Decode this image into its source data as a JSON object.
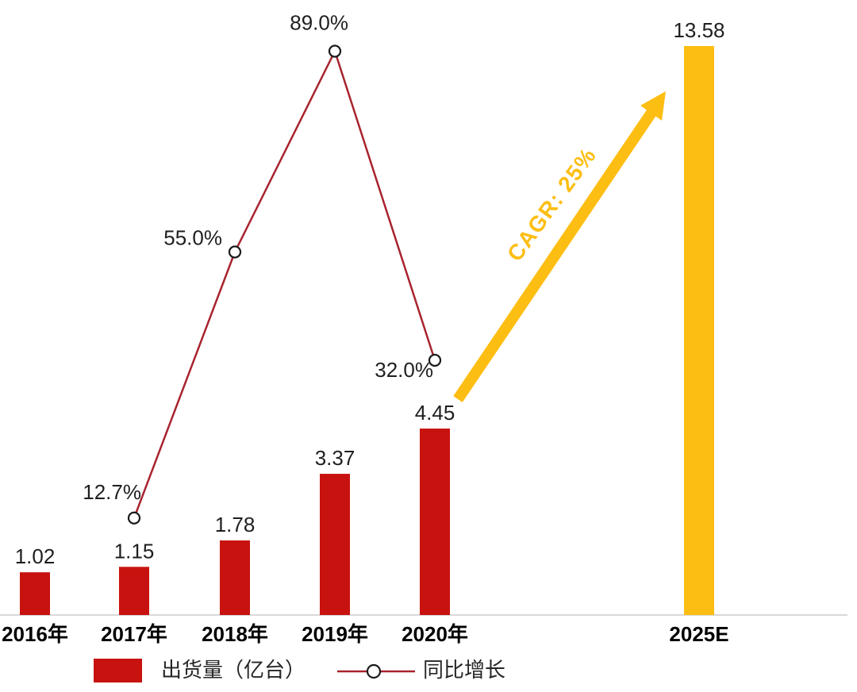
{
  "chart_data": {
    "type": "bar",
    "subtype": "bar-line-combo",
    "title": "",
    "categories": [
      "2016年",
      "2017年",
      "2018年",
      "2019年",
      "2020年",
      "2025E"
    ],
    "series": [
      {
        "name": "出货量（亿台）",
        "type": "bar",
        "values": [
          1.02,
          1.15,
          1.78,
          3.37,
          4.45,
          13.58
        ],
        "labels": [
          "1.02",
          "1.15",
          "1.78",
          "3.37",
          "4.45",
          "13.58"
        ],
        "colors": [
          "#C8120F",
          "#C8120F",
          "#C8120F",
          "#C8120F",
          "#C8120F",
          "#FDBE13"
        ]
      },
      {
        "name": "同比增长",
        "type": "line",
        "values_pct": [
          null,
          12.7,
          55.0,
          89.0,
          32.0,
          null
        ],
        "labels": [
          null,
          "12.7%",
          "55.0%",
          "89.0%",
          "32.0%",
          null
        ]
      }
    ],
    "annotations": {
      "cagr_label": "CAGR: 25%"
    },
    "axes": {
      "x_ticks": [
        "2016年",
        "2017年",
        "2018年",
        "2019年",
        "2020年",
        "2025E"
      ],
      "y_axis_visible": false,
      "grid": false,
      "bar_ylim": [
        0,
        13.58
      ],
      "pct_range_shown": [
        12.7,
        89.0
      ]
    },
    "legend": {
      "position": "bottom",
      "items": [
        "出货量（亿台）",
        "同比增长"
      ]
    },
    "colors": {
      "bar": "#C8120F",
      "bar_forecast": "#FDBE13",
      "line": "#A8232E",
      "marker_fill": "#FFFFFF",
      "marker_stroke": "#1A1A1A",
      "arrow": "#FDBE13",
      "axis_line": "#D9D9D9",
      "text": "#1F1F1F"
    }
  }
}
